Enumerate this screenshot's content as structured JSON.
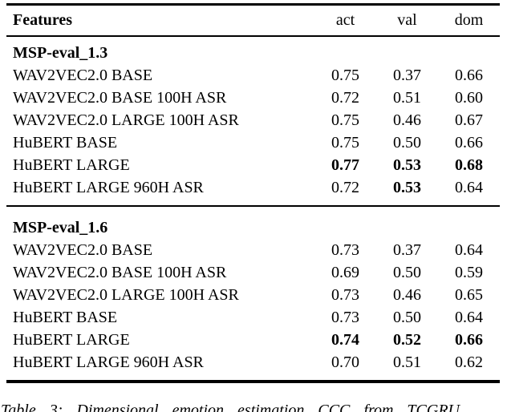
{
  "table": {
    "header": {
      "features": "Features",
      "columns": [
        "act",
        "val",
        "dom"
      ]
    },
    "sections": [
      {
        "title": "MSP-eval_1.3",
        "rows": [
          {
            "label": "WAV2VEC2.0 BASE",
            "values": [
              "0.75",
              "0.37",
              "0.66"
            ],
            "bold": [
              false,
              false,
              false
            ]
          },
          {
            "label": "WAV2VEC2.0 BASE 100H ASR",
            "values": [
              "0.72",
              "0.51",
              "0.60"
            ],
            "bold": [
              false,
              false,
              false
            ]
          },
          {
            "label": "WAV2VEC2.0 LARGE 100H ASR",
            "values": [
              "0.75",
              "0.46",
              "0.67"
            ],
            "bold": [
              false,
              false,
              false
            ]
          },
          {
            "label": "HuBERT BASE",
            "values": [
              "0.75",
              "0.50",
              "0.66"
            ],
            "bold": [
              false,
              false,
              false
            ]
          },
          {
            "label": "HuBERT LARGE",
            "values": [
              "0.77",
              "0.53",
              "0.68"
            ],
            "bold": [
              true,
              true,
              true
            ]
          },
          {
            "label": "HuBERT LARGE 960H ASR",
            "values": [
              "0.72",
              "0.53",
              "0.64"
            ],
            "bold": [
              false,
              true,
              false
            ]
          }
        ]
      },
      {
        "title": "MSP-eval_1.6",
        "rows": [
          {
            "label": "WAV2VEC2.0 BASE",
            "values": [
              "0.73",
              "0.37",
              "0.64"
            ],
            "bold": [
              false,
              false,
              false
            ]
          },
          {
            "label": "WAV2VEC2.0 BASE 100H ASR",
            "values": [
              "0.69",
              "0.50",
              "0.59"
            ],
            "bold": [
              false,
              false,
              false
            ]
          },
          {
            "label": "WAV2VEC2.0 LARGE 100H ASR",
            "values": [
              "0.73",
              "0.46",
              "0.65"
            ],
            "bold": [
              false,
              false,
              false
            ]
          },
          {
            "label": "HuBERT BASE",
            "values": [
              "0.73",
              "0.50",
              "0.64"
            ],
            "bold": [
              false,
              false,
              false
            ]
          },
          {
            "label": "HuBERT LARGE",
            "values": [
              "0.74",
              "0.52",
              "0.66"
            ],
            "bold": [
              true,
              true,
              true
            ]
          },
          {
            "label": "HuBERT LARGE 960H ASR",
            "values": [
              "0.70",
              "0.51",
              "0.62"
            ],
            "bold": [
              false,
              false,
              false
            ]
          }
        ]
      }
    ]
  },
  "caption": {
    "text": "Table 3: Dimensional emotion estimation CCC from TCGRU"
  },
  "colors": {
    "text": "#000000",
    "background": "#ffffff",
    "rule": "#000000"
  }
}
